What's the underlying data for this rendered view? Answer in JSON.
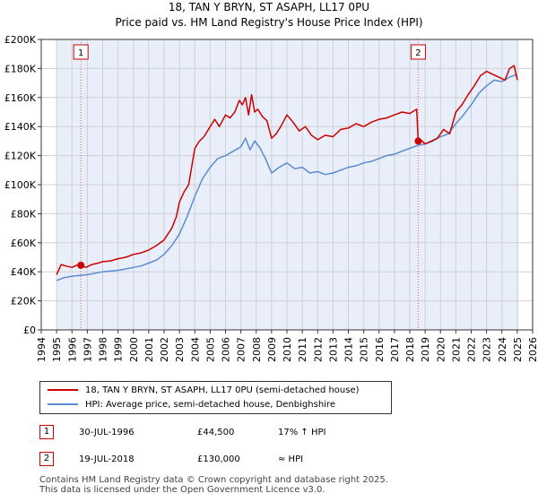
{
  "chart_data": {
    "type": "line",
    "title": "18, TAN Y BRYN, ST ASAPH, LL17 0PU",
    "title_display": "18, TAN  Y    BRYN, ST ASAPH, LL17 0PU",
    "subtitle": "Price paid vs. HM Land Registry's House Price Index (HPI)",
    "xlim": [
      1994,
      2026
    ],
    "ylim": [
      0,
      200000
    ],
    "x_ticks": [
      "1994",
      "1995",
      "1996",
      "1997",
      "1998",
      "1999",
      "2000",
      "2001",
      "2002",
      "2003",
      "2004",
      "2005",
      "2006",
      "2007",
      "2008",
      "2009",
      "2010",
      "2011",
      "2012",
      "2013",
      "2014",
      "2015",
      "2016",
      "2017",
      "2018",
      "2019",
      "2020",
      "2021",
      "2022",
      "2023",
      "2024",
      "2025",
      "2026"
    ],
    "y_ticks": [
      {
        "value": 0,
        "label": "£0"
      },
      {
        "value": 20000,
        "label": "£20K"
      },
      {
        "value": 40000,
        "label": "£40K"
      },
      {
        "value": 60000,
        "label": "£60K"
      },
      {
        "value": 80000,
        "label": "£80K"
      },
      {
        "value": 100000,
        "label": "£100K"
      },
      {
        "value": 120000,
        "label": "£120K"
      },
      {
        "value": 140000,
        "label": "£140K"
      },
      {
        "value": 160000,
        "label": "£160K"
      },
      {
        "value": 180000,
        "label": "£180K"
      },
      {
        "value": 200000,
        "label": "£200K"
      }
    ],
    "shaded_region": {
      "from": 1995.0,
      "to": 2025.1
    },
    "series": [
      {
        "name": "18, TAN  Y    BRYN, ST ASAPH, LL17 0PU (semi-detached house)",
        "color": "#cc0000",
        "x": [
          1995.0,
          1995.3,
          1995.6,
          1996.0,
          1996.3,
          1996.58,
          1996.9,
          1997.3,
          1997.7,
          1998.0,
          1998.5,
          1999.0,
          1999.5,
          2000.0,
          2000.5,
          2001.0,
          2001.5,
          2002.0,
          2002.5,
          2002.8,
          2003.0,
          2003.3,
          2003.6,
          2004.0,
          2004.3,
          2004.6,
          2005.0,
          2005.3,
          2005.6,
          2006.0,
          2006.3,
          2006.6,
          2006.9,
          2007.1,
          2007.3,
          2007.5,
          2007.7,
          2007.9,
          2008.1,
          2008.4,
          2008.7,
          2009.0,
          2009.3,
          2009.6,
          2010.0,
          2010.4,
          2010.8,
          2011.2,
          2011.6,
          2012.0,
          2012.5,
          2013.0,
          2013.5,
          2014.0,
          2014.5,
          2015.0,
          2015.5,
          2016.0,
          2016.5,
          2017.0,
          2017.5,
          2018.0,
          2018.45,
          2018.55,
          2018.7,
          2019.0,
          2019.4,
          2019.8,
          2020.2,
          2020.6,
          2021.0,
          2021.4,
          2021.8,
          2022.2,
          2022.6,
          2023.0,
          2023.4,
          2023.8,
          2024.2,
          2024.5,
          2024.8,
          2025.0
        ],
        "values": [
          38000,
          45000,
          44000,
          43000,
          44500,
          44500,
          43000,
          45000,
          46000,
          47000,
          47500,
          49000,
          50000,
          52000,
          53000,
          55000,
          58000,
          62000,
          70000,
          78000,
          88000,
          95000,
          100000,
          125000,
          130000,
          133000,
          140000,
          145000,
          140000,
          148000,
          146000,
          150000,
          158000,
          155000,
          160000,
          148000,
          162000,
          150000,
          152000,
          147000,
          144000,
          132000,
          135000,
          140000,
          148000,
          143000,
          137000,
          140000,
          134000,
          131000,
          134000,
          133000,
          138000,
          139000,
          142000,
          140000,
          143000,
          145000,
          146000,
          148000,
          150000,
          149000,
          152000,
          130000,
          131000,
          128000,
          130000,
          132000,
          138000,
          135000,
          150000,
          155000,
          162000,
          168000,
          175000,
          178000,
          176000,
          174000,
          172000,
          180000,
          182000,
          172000
        ]
      },
      {
        "name": "HPI: Average price, semi-detached house, Denbighshire",
        "color": "#5b8bd0",
        "x": [
          1995.0,
          1995.5,
          1996.0,
          1996.5,
          1997.0,
          1997.5,
          1998.0,
          1998.5,
          1999.0,
          1999.5,
          2000.0,
          2000.5,
          2001.0,
          2001.5,
          2002.0,
          2002.5,
          2003.0,
          2003.5,
          2004.0,
          2004.5,
          2005.0,
          2005.5,
          2006.0,
          2006.5,
          2007.0,
          2007.3,
          2007.6,
          2007.9,
          2008.2,
          2008.6,
          2009.0,
          2009.5,
          2010.0,
          2010.5,
          2011.0,
          2011.5,
          2012.0,
          2012.5,
          2013.0,
          2013.5,
          2014.0,
          2014.5,
          2015.0,
          2015.5,
          2016.0,
          2016.5,
          2017.0,
          2017.5,
          2018.0,
          2018.5,
          2019.0,
          2019.5,
          2020.0,
          2020.5,
          2021.0,
          2021.5,
          2022.0,
          2022.5,
          2023.0,
          2023.5,
          2024.0,
          2024.5,
          2025.0
        ],
        "values": [
          34000,
          36000,
          37000,
          37500,
          38000,
          39000,
          40000,
          40500,
          41000,
          42000,
          43000,
          44000,
          46000,
          48000,
          52000,
          58000,
          66000,
          78000,
          92000,
          104000,
          112000,
          118000,
          120000,
          123000,
          126000,
          132000,
          124000,
          130000,
          126000,
          118000,
          108000,
          112000,
          115000,
          111000,
          112000,
          108000,
          109000,
          107000,
          108000,
          110000,
          112000,
          113000,
          115000,
          116000,
          118000,
          120000,
          121000,
          123000,
          125000,
          127000,
          128000,
          130000,
          133000,
          135000,
          142000,
          148000,
          155000,
          163000,
          168000,
          172000,
          171000,
          174000,
          176000
        ]
      }
    ],
    "annotations": [
      {
        "id": "1",
        "x": 1996.58,
        "value": 44500
      },
      {
        "id": "2",
        "x": 2018.55,
        "value": 130000
      }
    ]
  },
  "colors": {
    "red_line": "#cc0000",
    "blue_line": "#5b8bd0",
    "shade": "#e8eefa",
    "grid": "#d0d0d0",
    "vline": "#e06060"
  },
  "legend": {
    "red_label": "18, TAN  Y    BRYN, ST ASAPH, LL17 0PU (semi-detached house)",
    "blue_label": "HPI: Average price, semi-detached house, Denbighshire"
  },
  "sales": [
    {
      "badge": "1",
      "date": "30-JUL-1996",
      "price": "£44,500",
      "hpi": "17% ↑ HPI"
    },
    {
      "badge": "2",
      "date": "19-JUL-2018",
      "price": "£130,000",
      "hpi": "≈ HPI"
    }
  ],
  "footer": {
    "line1": "Contains HM Land Registry data © Crown copyright and database right 2025.",
    "line2": "This data is licensed under the Open Government Licence v3.0."
  }
}
